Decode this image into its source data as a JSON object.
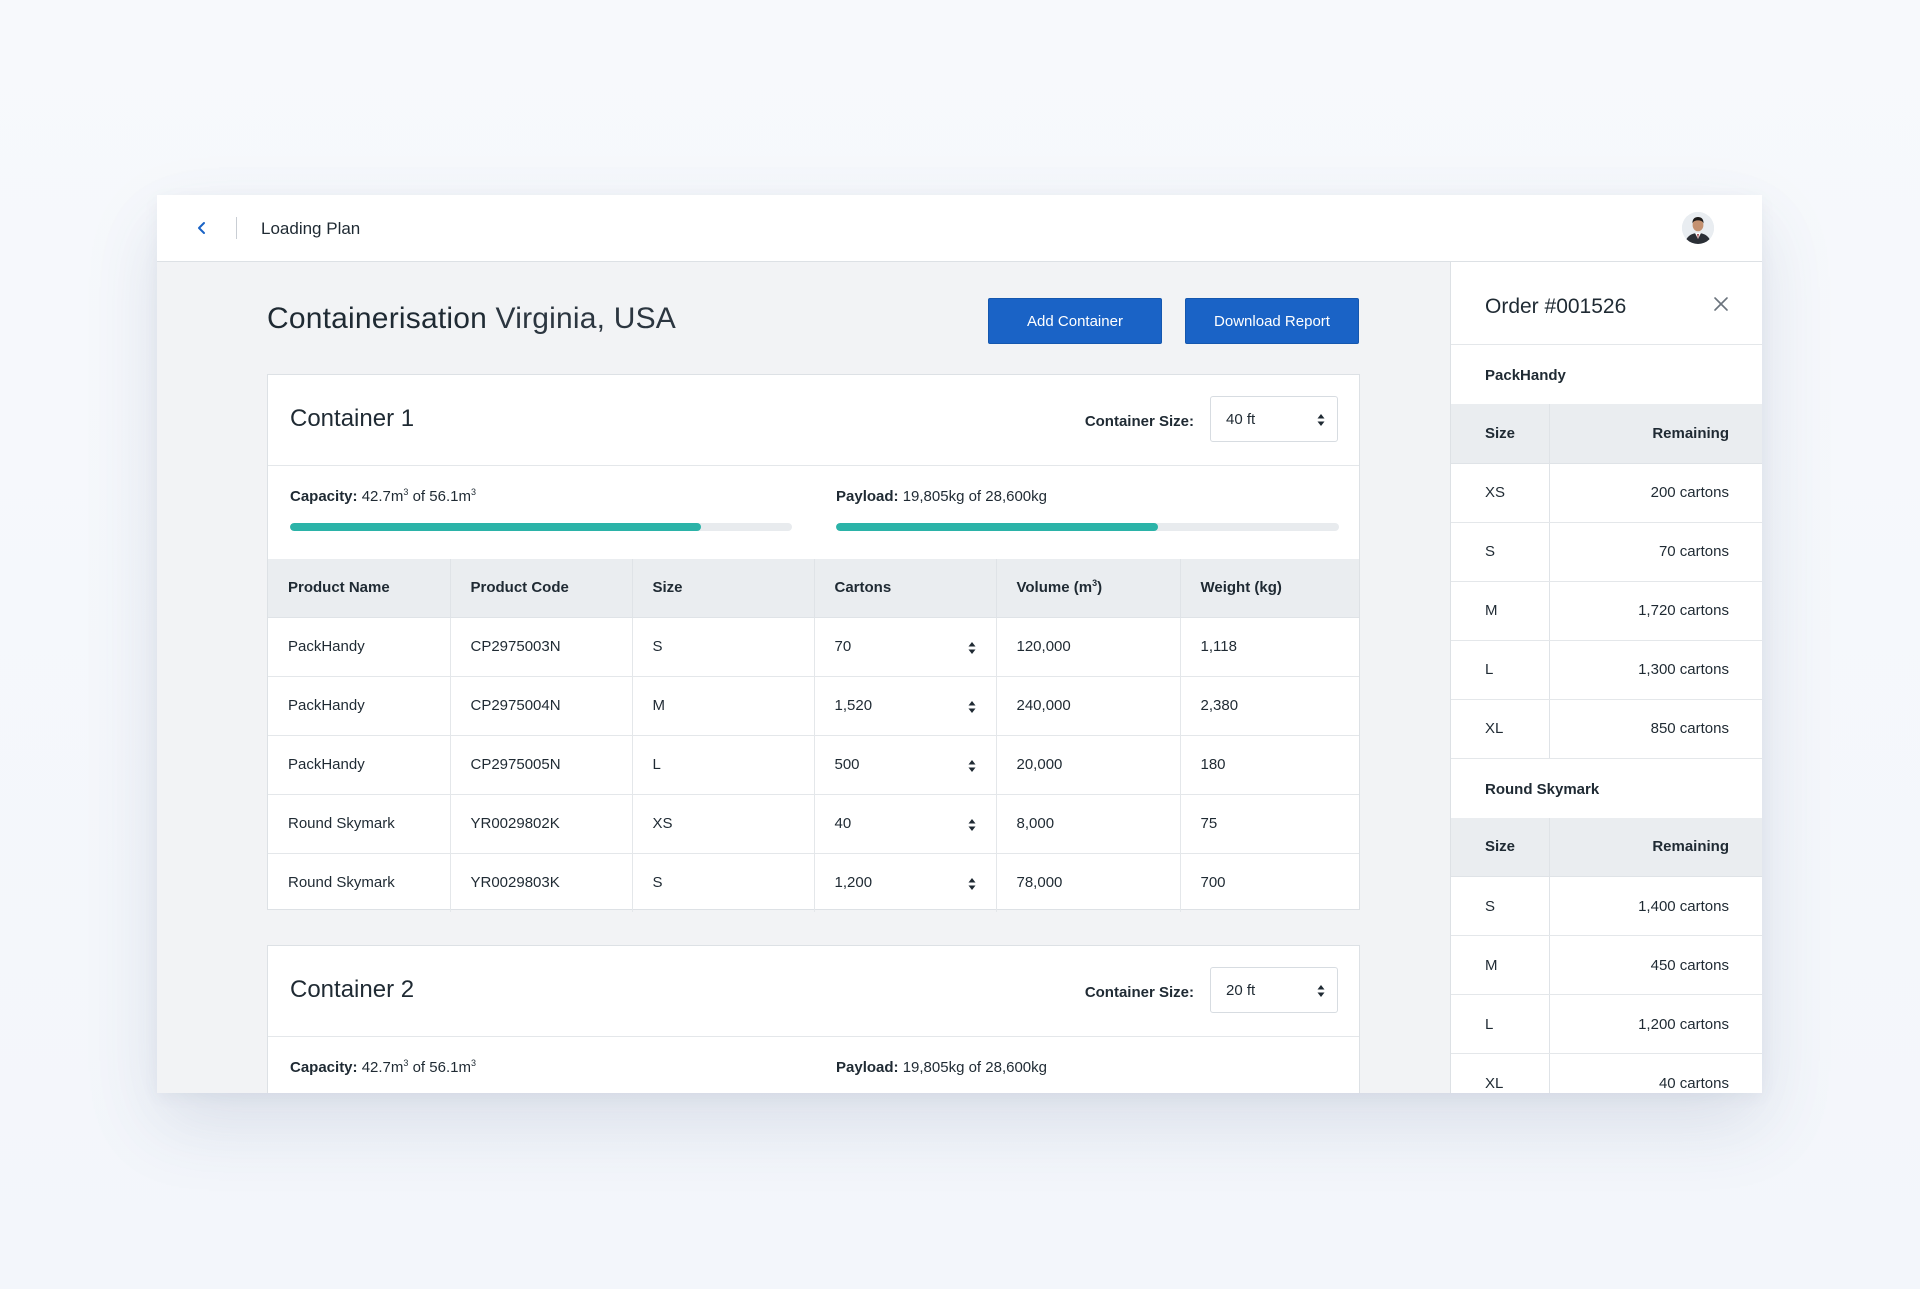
{
  "header": {
    "title": "Loading Plan"
  },
  "page": {
    "title": "Containerisation",
    "location": "Virginia, USA"
  },
  "actions": {
    "add_container": "Add Container",
    "download_report": "Download Report"
  },
  "table_columns": [
    "Product Name",
    "Product Code",
    "Size",
    "Cartons",
    "Volume (m",
    "Weight (kg)"
  ],
  "containers": [
    {
      "title": "Container 1",
      "size_label": "Container Size:",
      "size_value": "40 ft",
      "capacity": {
        "label": "Capacity:",
        "used": "42.7m",
        "of": "of",
        "total": "56.1m",
        "exp": "3",
        "fill": 0.818
      },
      "payload": {
        "label": "Payload:",
        "text": "19,805kg of 28,600kg",
        "fill": 0.64
      },
      "rows": [
        {
          "name": "PackHandy",
          "code": "CP2975003N",
          "size": "S",
          "cartons": "70",
          "volume": "120,000",
          "weight": "1,118"
        },
        {
          "name": "PackHandy",
          "code": "CP2975004N",
          "size": "M",
          "cartons": "1,520",
          "volume": "240,000",
          "weight": "2,380"
        },
        {
          "name": "PackHandy",
          "code": "CP2975005N",
          "size": "L",
          "cartons": "500",
          "volume": "20,000",
          "weight": "180"
        },
        {
          "name": "Round Skymark",
          "code": "YR0029802K",
          "size": "XS",
          "cartons": "40",
          "volume": "8,000",
          "weight": "75"
        },
        {
          "name": "Round Skymark",
          "code": "YR0029803K",
          "size": "S",
          "cartons": "1,200",
          "volume": "78,000",
          "weight": "700"
        }
      ]
    },
    {
      "title": "Container 2",
      "size_label": "Container Size:",
      "size_value": "20 ft",
      "capacity": {
        "label": "Capacity:",
        "used": "42.7m",
        "of": "of",
        "total": "56.1m",
        "exp": "3"
      },
      "payload": {
        "label": "Payload:",
        "text": "19,805kg of 28,600kg"
      }
    }
  ],
  "order_panel": {
    "title": "Order #001526",
    "columns": {
      "size": "Size",
      "remaining": "Remaining"
    },
    "groups": [
      {
        "name": "PackHandy",
        "rows": [
          {
            "size": "XS",
            "remaining": "200 cartons"
          },
          {
            "size": "S",
            "remaining": "70 cartons"
          },
          {
            "size": "M",
            "remaining": "1,720 cartons"
          },
          {
            "size": "L",
            "remaining": "1,300 cartons"
          },
          {
            "size": "XL",
            "remaining": "850 cartons"
          }
        ]
      },
      {
        "name": "Round Skymark",
        "rows": [
          {
            "size": "S",
            "remaining": "1,400 cartons"
          },
          {
            "size": "M",
            "remaining": "450 cartons"
          },
          {
            "size": "L",
            "remaining": "1,200 cartons"
          },
          {
            "size": "XL",
            "remaining": "40 cartons"
          }
        ]
      }
    ]
  },
  "colors": {
    "primary": "#1a63c6",
    "progress": "#2bb3a8",
    "track": "#e8ebee",
    "back_icon": "#1a63c6"
  },
  "icons": {
    "back": "chevron-left-icon",
    "close": "close-icon",
    "select": "up-down-arrows-icon",
    "avatar": "user-avatar"
  }
}
